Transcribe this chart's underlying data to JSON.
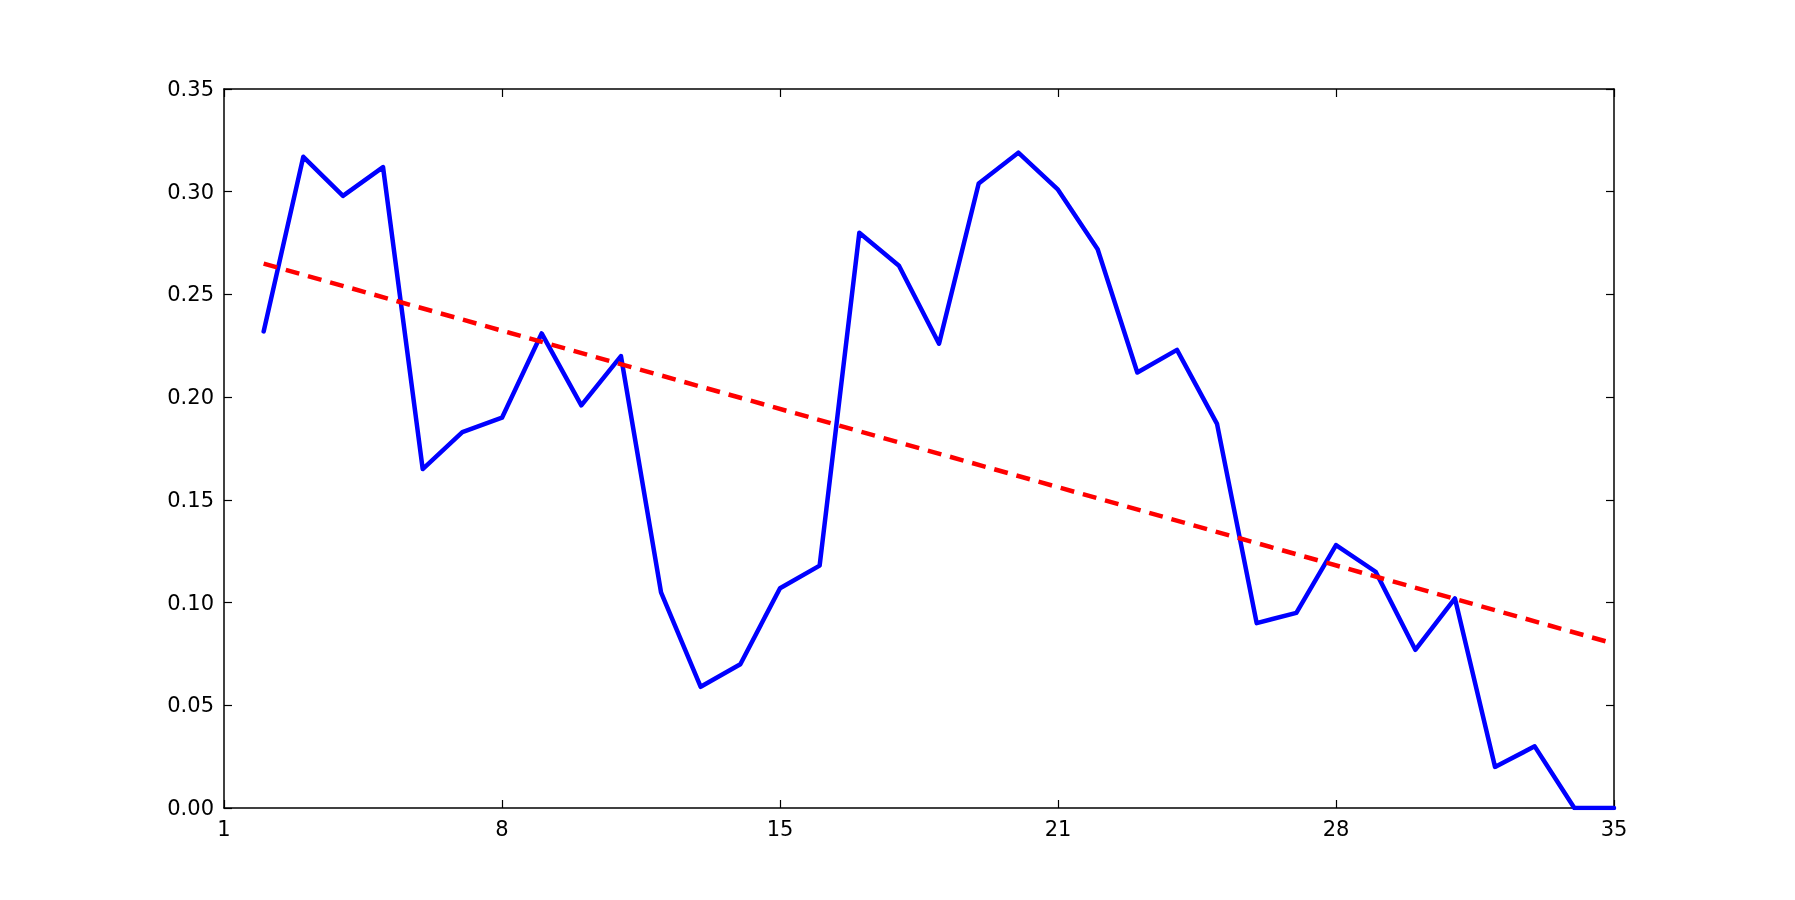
{
  "chart_data": {
    "type": "line",
    "x": [
      1.97,
      2.94,
      3.91,
      4.89,
      5.86,
      6.83,
      7.8,
      8.77,
      9.74,
      10.71,
      11.69,
      12.66,
      13.63,
      14.6,
      15.57,
      16.54,
      17.51,
      18.49,
      19.46,
      20.43,
      21.4,
      22.37,
      23.34,
      24.31,
      25.29,
      26.26,
      27.23,
      28.2,
      29.17,
      30.14,
      31.11,
      32.09,
      33.06,
      34.03,
      35
    ],
    "series": [
      {
        "color": "#0000ff",
        "values": [
          0.232,
          0.317,
          0.298,
          0.312,
          0.165,
          0.183,
          0.19,
          0.231,
          0.196,
          0.22,
          0.105,
          0.059,
          0.07,
          0.107,
          0.118,
          0.28,
          0.264,
          0.226,
          0.304,
          0.319,
          0.301,
          0.272,
          0.212,
          0.223,
          0.187,
          0.09,
          0.095,
          0.128,
          0.115,
          0.077,
          0.102,
          0.02,
          0.03,
          0,
          0
        ]
      },
      {
        "type": "line",
        "x": [
          1.97,
          35
        ],
        "color": "#ff0000",
        "values": [
          0.265,
          0.08
        ],
        "line_style": "dashed"
      }
    ],
    "xlim": [
      1,
      35
    ],
    "xticks": [
      1,
      {
        "value": 7.8,
        "label": "8"
      },
      {
        "value": 14.6,
        "label": "15"
      },
      {
        "value": 21.4,
        "label": "21"
      },
      {
        "value": 28.2,
        "label": "28"
      },
      35
    ],
    "ylim": [
      0,
      0.35
    ],
    "yticks": [
      {
        "value": 0,
        "label": "0.00"
      },
      {
        "value": 0.05,
        "label": "0.05"
      },
      {
        "value": 0.1,
        "label": "0.10"
      },
      {
        "value": 0.15,
        "label": "0.15"
      },
      {
        "value": 0.2,
        "label": "0.20"
      },
      {
        "value": 0.25,
        "label": "0.25"
      },
      {
        "value": 0.3,
        "label": "0.30"
      },
      {
        "value": 0.35,
        "label": "0.35"
      }
    ],
    "marker": "none",
    "line_style": "solid"
  }
}
